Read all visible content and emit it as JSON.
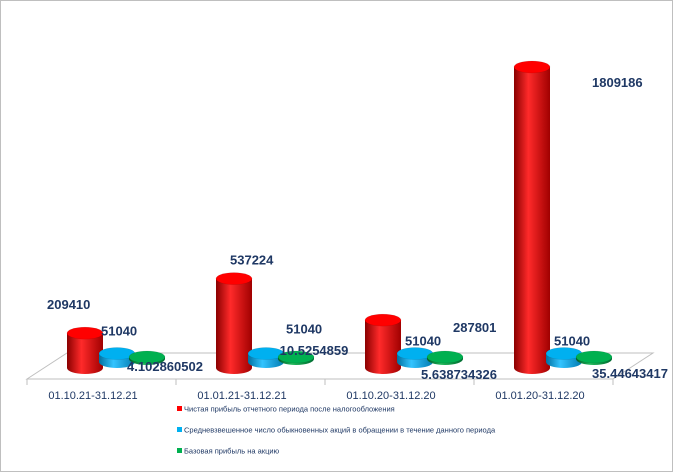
{
  "chart_data": {
    "type": "bar",
    "style": "3d-cylinder",
    "title": "",
    "xlabel": "",
    "ylabel": "",
    "categories": [
      "01.10.21-31.12.21",
      "01.01.21-31.12.21",
      "01.10.20-31.12.20",
      "01.01.20-31.12.20"
    ],
    "series": [
      {
        "name": "Чистая прибыль отчетного периода после налогообложения",
        "color": "#ff0000",
        "values": [
          209410,
          537224,
          287801,
          1809186
        ],
        "labels": [
          "209410",
          "537224",
          "287801",
          "1809186"
        ]
      },
      {
        "name": "Средневзвешенное число обыкновенных акций в обращении в течение данного периода",
        "color": "#00b0f0",
        "values": [
          51040,
          51040,
          51040,
          51040
        ],
        "labels": [
          "51040",
          "51040",
          "51040",
          "51040"
        ]
      },
      {
        "name": "Базовая прибыль на акцию",
        "color": "#00b050",
        "values": [
          4.102860502,
          10.5254859,
          5.638734326,
          35.44643417
        ],
        "labels": [
          "4.102860502",
          "10.5254859",
          "5.638734326",
          "35.44643417"
        ]
      }
    ],
    "ylim": [
      0,
      1809186
    ],
    "grid": false,
    "legend_position": "bottom"
  }
}
